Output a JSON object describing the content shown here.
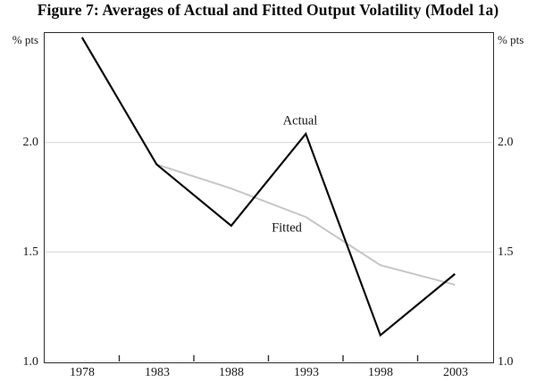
{
  "title": "Figure 7: Averages of Actual and Fitted Output Volatility (Model 1a)",
  "chart_data": {
    "type": "line",
    "title": "Figure 7: Averages of Actual and Fitted Output Volatility (Model 1a)",
    "xlabel": "",
    "ylabel": "% pts",
    "ylabel_left": "% pts",
    "ylabel_right": "% pts",
    "x": [
      1978,
      1983,
      1988,
      1993,
      1998,
      2003
    ],
    "categories": [
      "1978",
      "1983",
      "1988",
      "1993",
      "1998",
      "2003"
    ],
    "series": [
      {
        "name": "Actual",
        "color": "#0a0a0a",
        "stroke_width": 2.2,
        "values": [
          2.48,
          1.9,
          1.62,
          2.04,
          1.12,
          1.4
        ]
      },
      {
        "name": "Fitted",
        "color": "#c6c6c6",
        "stroke_width": 2,
        "values": [
          null,
          1.9,
          1.79,
          1.66,
          1.44,
          1.35
        ]
      }
    ],
    "annotations": [
      {
        "text": "Actual",
        "x": 1992.6,
        "y": 2.1
      },
      {
        "text": "Fitted",
        "x": 1991.7,
        "y": 1.61
      }
    ],
    "xlim": [
      1975.5,
      2005.5
    ],
    "ylim": [
      1.0,
      2.5
    ],
    "y_ticks": [
      {
        "value": 1.0,
        "label": "1.0"
      },
      {
        "value": 1.5,
        "label": "1.5"
      },
      {
        "value": 2.0,
        "label": "2.0"
      }
    ],
    "x_boundary_ticks": [
      1980.5,
      1985.5,
      1990.5,
      1995.5,
      2000.5
    ],
    "gridlines": [
      1.5,
      2.0
    ],
    "grid_on": true,
    "legend_position": "inline-labels",
    "colors": {
      "frame": "#2e2e2e",
      "gridline": "#d9d9d9",
      "actual_line": "#0a0a0a",
      "fitted_line": "#c6c6c6",
      "text": "#1a1a1a"
    }
  }
}
